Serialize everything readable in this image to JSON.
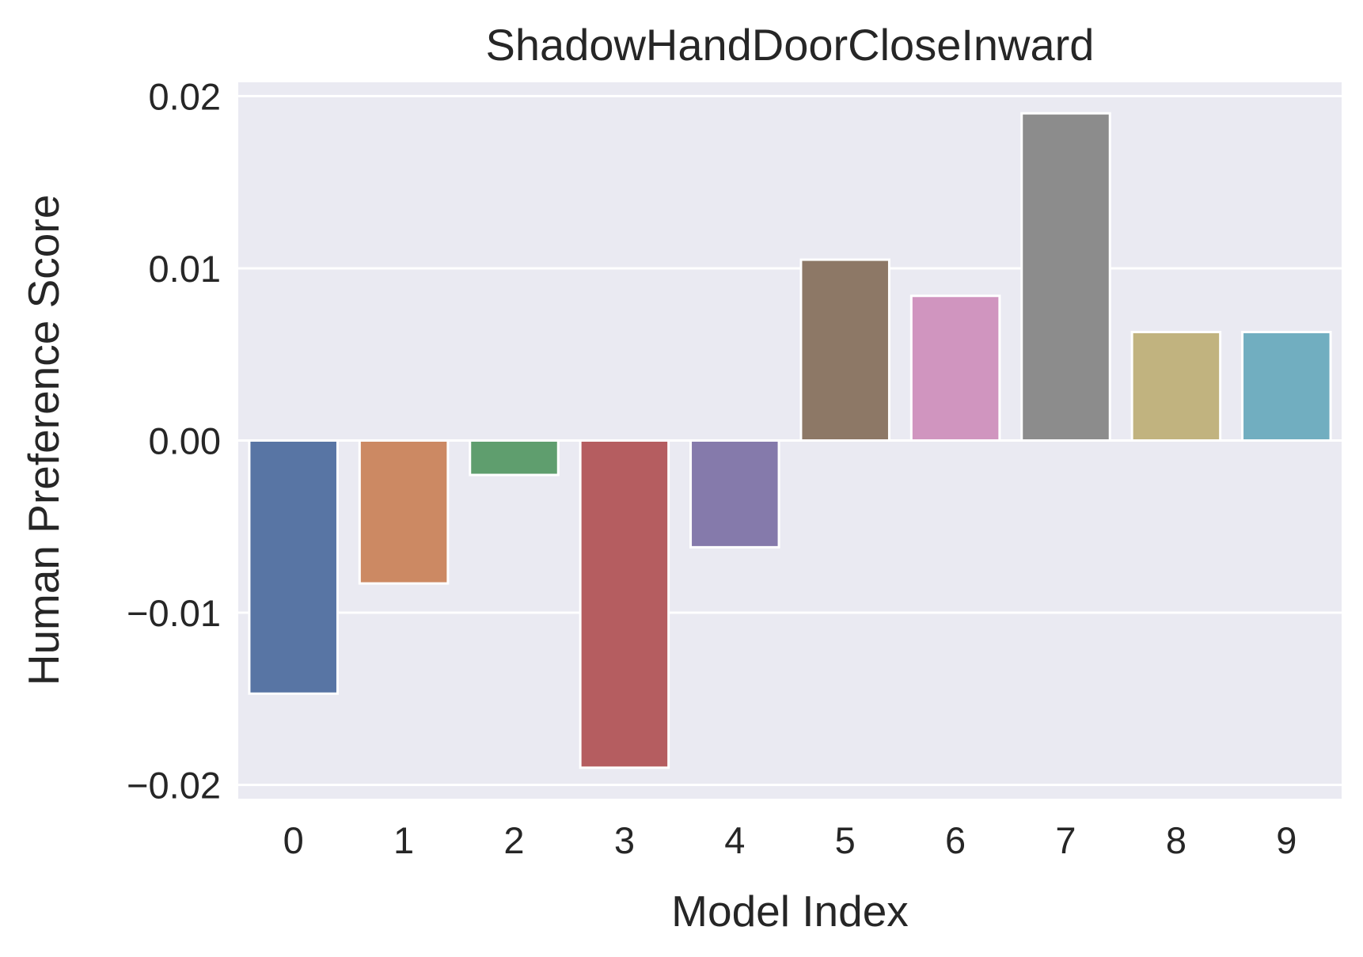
{
  "chart_data": {
    "type": "bar",
    "title": "ShadowHandDoorCloseInward",
    "xlabel": "Model Index",
    "ylabel": "Human Preference Score",
    "categories": [
      "0",
      "1",
      "2",
      "3",
      "4",
      "5",
      "6",
      "7",
      "8",
      "9"
    ],
    "values": [
      -0.0147,
      -0.0083,
      -0.002,
      -0.019,
      -0.0062,
      0.0105,
      0.0084,
      0.019,
      0.0063,
      0.0063
    ],
    "colors": [
      "#5875a4",
      "#cc8963",
      "#5f9e6e",
      "#b55d60",
      "#857aab",
      "#8d7866",
      "#d095bf",
      "#8c8c8c",
      "#c1b37f",
      "#71aec0"
    ],
    "ylim": [
      -0.0208,
      0.0208
    ],
    "yticks": [
      -0.02,
      -0.01,
      0.0,
      0.01,
      0.02
    ],
    "ytick_labels": [
      "−0.02",
      "−0.01",
      "0.00",
      "0.01",
      "0.02"
    ],
    "grid": true,
    "background_color": "#eaeaf2",
    "grid_color": "#ffffff"
  }
}
